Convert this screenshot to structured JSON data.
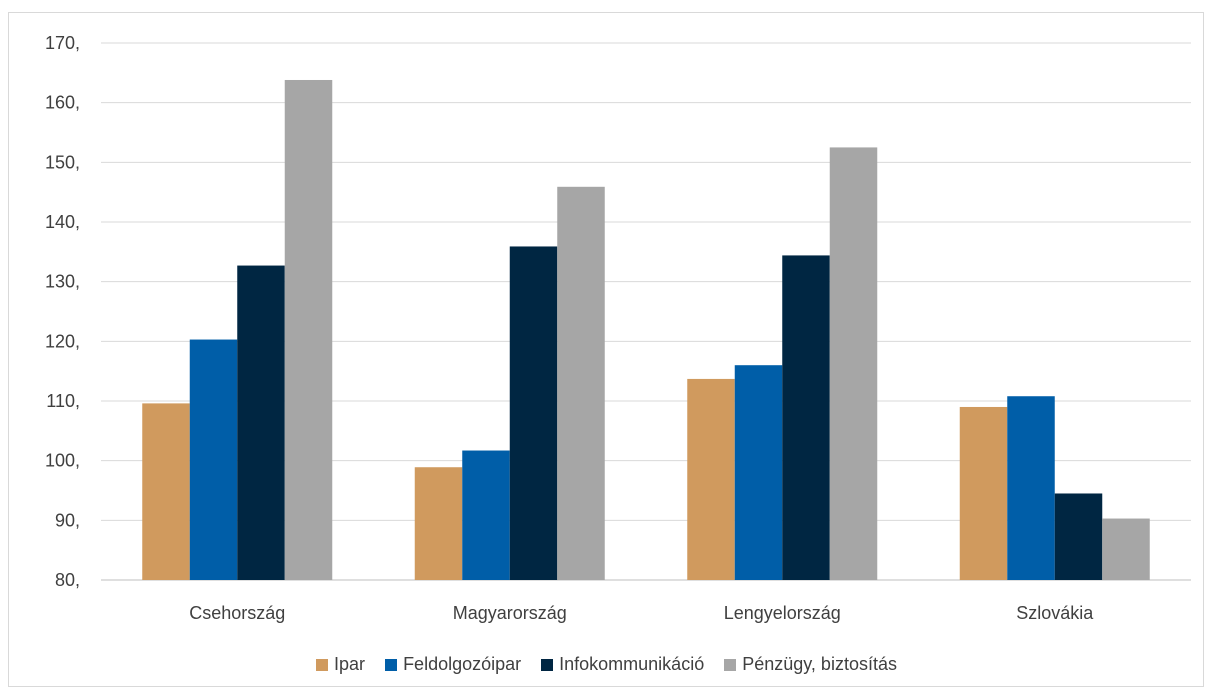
{
  "chart_data": {
    "type": "bar",
    "categories": [
      "Csehország",
      "Magyarország",
      "Lengyelország",
      "Szlovákia"
    ],
    "series": [
      {
        "name": "Ipar",
        "color": "#D09A5E",
        "values": [
          109.6,
          98.9,
          113.7,
          109.0
        ]
      },
      {
        "name": "Feldolgozóipar",
        "color": "#005EA8",
        "values": [
          120.3,
          101.7,
          116.0,
          110.8
        ]
      },
      {
        "name": "Infokommunikáció",
        "color": "#002642",
        "values": [
          132.7,
          135.9,
          134.4,
          94.5
        ]
      },
      {
        "name": "Pénzügy, biztosítás",
        "color": "#A6A6A6",
        "values": [
          163.8,
          145.9,
          152.5,
          90.3
        ]
      }
    ],
    "yticks": [
      "80,",
      "90,",
      "100,",
      "110,",
      "120,",
      "130,",
      "140,",
      "150,",
      "160,",
      "170,"
    ],
    "ylim": [
      80,
      170
    ],
    "grid": true,
    "legend_position": "bottom"
  }
}
